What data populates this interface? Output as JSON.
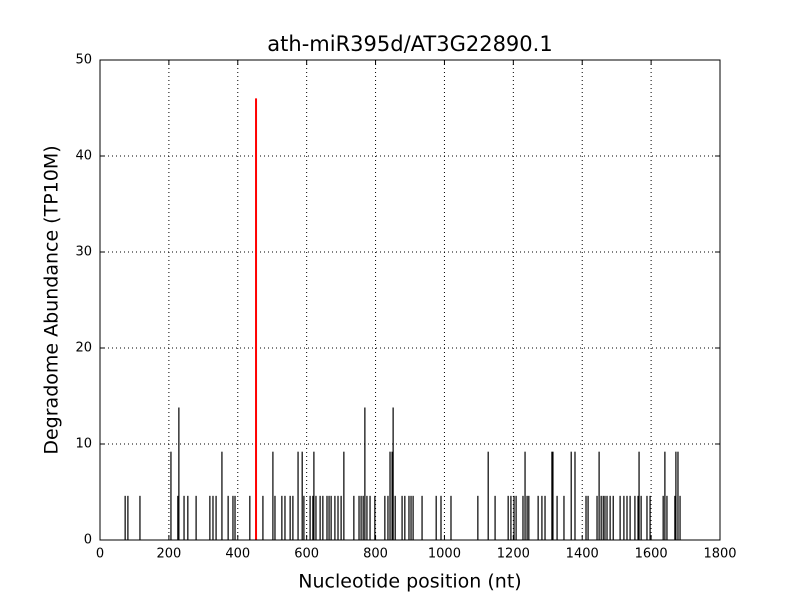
{
  "chart_data": {
    "type": "stem",
    "title": "ath-miR395d/AT3G22890.1",
    "x_label": "Nucleotide position (nt)",
    "y_label": "Degradome Abundance (TP10M)",
    "xlim": [
      0,
      1800
    ],
    "xticks": [
      0,
      200,
      400,
      600,
      800,
      1000,
      1200,
      1400,
      1600,
      1800
    ],
    "ylim": [
      0,
      50
    ],
    "yticks": [
      0,
      10,
      20,
      30,
      40,
      50
    ],
    "grid": true,
    "series": [
      {
        "color": "#000000",
        "x": [
          73,
          81,
          116,
          206,
          226,
          229,
          244,
          255,
          279,
          319,
          328,
          337,
          354,
          372,
          386,
          392,
          435,
          473,
          502,
          508,
          528,
          537,
          552,
          560,
          575,
          587,
          592,
          610,
          618,
          621,
          627,
          639,
          647,
          659,
          665,
          671,
          682,
          691,
          700,
          708,
          737,
          752,
          758,
          764,
          769,
          775,
          784,
          798,
          827,
          836,
          842,
          848,
          851,
          857,
          877,
          885,
          897,
          903,
          909,
          935,
          976,
          990,
          1019,
          1097,
          1127,
          1147,
          1185,
          1193,
          1202,
          1208,
          1228,
          1234,
          1240,
          1245,
          1272,
          1283,
          1292,
          1312,
          1315,
          1327,
          1347,
          1368,
          1379,
          1411,
          1417,
          1443,
          1449,
          1455,
          1461,
          1466,
          1472,
          1481,
          1490,
          1510,
          1521,
          1530,
          1539,
          1553,
          1562,
          1565,
          1571,
          1588,
          1597,
          1635,
          1640,
          1646,
          1669,
          1672,
          1678,
          1684
        ],
        "values": [
          4.6,
          4.6,
          4.6,
          9.2,
          4.6,
          13.8,
          4.6,
          4.6,
          4.6,
          4.6,
          4.6,
          4.6,
          9.2,
          4.6,
          4.6,
          4.6,
          4.6,
          4.6,
          9.2,
          4.6,
          4.6,
          4.6,
          4.6,
          4.6,
          9.2,
          9.2,
          4.6,
          4.6,
          4.6,
          9.2,
          4.6,
          4.6,
          4.6,
          4.6,
          4.6,
          4.6,
          4.6,
          4.6,
          4.6,
          9.2,
          4.6,
          4.6,
          4.6,
          4.6,
          13.8,
          4.6,
          4.6,
          4.6,
          4.6,
          4.6,
          9.2,
          9.2,
          13.8,
          4.6,
          4.6,
          4.6,
          4.6,
          4.6,
          4.6,
          4.6,
          4.6,
          4.6,
          4.6,
          4.6,
          9.2,
          4.6,
          4.6,
          4.6,
          4.6,
          4.6,
          4.6,
          9.2,
          4.6,
          4.6,
          4.6,
          4.6,
          4.6,
          9.2,
          9.2,
          4.6,
          4.6,
          9.2,
          9.2,
          4.6,
          4.6,
          4.6,
          9.2,
          4.6,
          4.6,
          4.6,
          4.6,
          4.6,
          4.6,
          4.6,
          4.6,
          4.6,
          4.6,
          4.6,
          4.6,
          9.2,
          4.6,
          4.6,
          4.6,
          4.6,
          9.2,
          4.6,
          4.6,
          9.2,
          9.2,
          4.6
        ]
      },
      {
        "color": "#ff0000",
        "x": [
          453
        ],
        "values": [
          46
        ]
      }
    ]
  }
}
